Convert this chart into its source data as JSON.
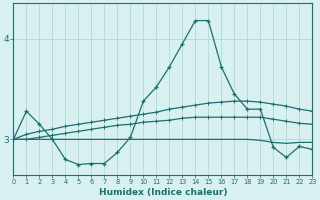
{
  "xlabel": "Humidex (Indice chaleur)",
  "bg_color": "#d8f0f0",
  "grid_color": "#aad4d4",
  "line_color": "#1a7070",
  "x_min": 0,
  "x_max": 23,
  "y_min": 2.65,
  "y_max": 4.35,
  "yticks": [
    3,
    4
  ],
  "series": {
    "line1_x": [
      0,
      1,
      2,
      3,
      4,
      5,
      6,
      7,
      8,
      9,
      10,
      11,
      12,
      13,
      14,
      15,
      16,
      17,
      18,
      19,
      20,
      21,
      22,
      23
    ],
    "line1_y": [
      3.0,
      3.28,
      3.15,
      3.0,
      2.8,
      2.75,
      2.76,
      2.76,
      2.87,
      3.02,
      3.38,
      3.52,
      3.72,
      3.95,
      4.18,
      4.18,
      3.72,
      3.45,
      3.3,
      3.3,
      2.92,
      2.82,
      2.93,
      2.9
    ],
    "line2_x": [
      0,
      1,
      2,
      3,
      4,
      5,
      6,
      7,
      8,
      9,
      10,
      11,
      12,
      13,
      14,
      15,
      16,
      17,
      18,
      19,
      20,
      21,
      22,
      23
    ],
    "line2_y": [
      3.0,
      3.05,
      3.08,
      3.1,
      3.13,
      3.15,
      3.17,
      3.19,
      3.21,
      3.23,
      3.25,
      3.27,
      3.3,
      3.32,
      3.34,
      3.36,
      3.37,
      3.38,
      3.38,
      3.37,
      3.35,
      3.33,
      3.3,
      3.28
    ],
    "line3_x": [
      0,
      1,
      2,
      3,
      4,
      5,
      6,
      7,
      8,
      9,
      10,
      11,
      12,
      13,
      14,
      15,
      16,
      17,
      18,
      19,
      20,
      21,
      22,
      23
    ],
    "line3_y": [
      3.0,
      3.0,
      3.02,
      3.04,
      3.06,
      3.08,
      3.1,
      3.12,
      3.14,
      3.15,
      3.17,
      3.18,
      3.19,
      3.21,
      3.22,
      3.22,
      3.22,
      3.22,
      3.22,
      3.22,
      3.2,
      3.18,
      3.16,
      3.15
    ],
    "line4_x": [
      0,
      1,
      2,
      3,
      4,
      5,
      6,
      7,
      8,
      9,
      10,
      11,
      12,
      13,
      14,
      15,
      16,
      17,
      18,
      19,
      20,
      21,
      22,
      23
    ],
    "line4_y": [
      3.0,
      3.0,
      3.0,
      3.0,
      3.0,
      3.0,
      3.0,
      3.0,
      3.0,
      3.0,
      3.0,
      3.0,
      3.0,
      3.0,
      3.0,
      3.0,
      3.0,
      3.0,
      3.0,
      2.99,
      2.97,
      2.96,
      2.97,
      2.97
    ]
  }
}
